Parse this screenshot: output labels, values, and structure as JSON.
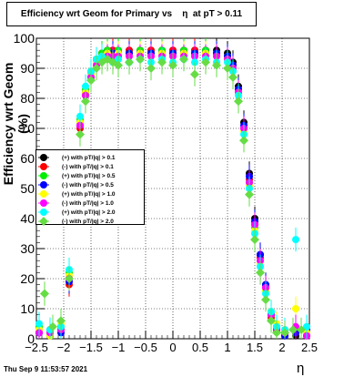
{
  "chart_data": {
    "type": "scatter",
    "title": "Efficiency wrt Geom for Primary vs    η  at pT > 0.11",
    "xlabel": "η",
    "ylabel": "Efficiency wrt Geom (%)",
    "xlim": [
      -2.5,
      2.5
    ],
    "ylim": [
      0,
      100
    ],
    "x_ticks": [
      "−2.5",
      "−2",
      "−1.5",
      "−1",
      "−0.5",
      "0",
      "0.5",
      "1",
      "1.5",
      "2",
      "2.5"
    ],
    "y_ticks": [
      "0",
      "10",
      "20",
      "30",
      "40",
      "50",
      "60",
      "70",
      "80",
      "90",
      "100"
    ],
    "grid": true,
    "legend_position": "middle-left",
    "series": [
      {
        "name": "(+) with pT/|q| > 0.1",
        "color": "#000000",
        "marker": "circle",
        "x": [
          -2.45,
          -2.25,
          -2.05,
          -1.9,
          -1.8,
          -1.7,
          -1.6,
          -1.5,
          -1.4,
          -1.3,
          -1.2,
          -1.1,
          -1.0,
          -0.8,
          -0.6,
          -0.4,
          -0.2,
          0,
          0.2,
          0.4,
          0.6,
          0.8,
          1.0,
          1.1,
          1.2,
          1.3,
          1.4,
          1.5,
          1.6,
          1.7,
          1.8,
          1.9,
          2.05,
          2.25,
          2.45
        ],
        "y": [
          2,
          1,
          3,
          20,
          50,
          72,
          82,
          88,
          93,
          95,
          96,
          96,
          96,
          96,
          96,
          96,
          96,
          96,
          96,
          96,
          96,
          96,
          95,
          92,
          84,
          72,
          55,
          40,
          28,
          18,
          8,
          3,
          1,
          1,
          2
        ]
      },
      {
        "name": "(-) with pT/|q| > 0.1",
        "color": "#ff0000",
        "marker": "circle",
        "x": [
          -2.45,
          -2.25,
          -2.05,
          -1.9,
          -1.8,
          -1.7,
          -1.6,
          -1.5,
          -1.4,
          -1.3,
          -1.2,
          -1.1,
          -1.0,
          -0.8,
          -0.6,
          -0.4,
          -0.2,
          0,
          0.2,
          0.4,
          0.6,
          0.8,
          1.0,
          1.1,
          1.2,
          1.3,
          1.4,
          1.5,
          1.6,
          1.7,
          1.8,
          1.9,
          2.05,
          2.25,
          2.45
        ],
        "y": [
          3,
          2,
          4,
          18,
          48,
          70,
          81,
          87,
          92,
          94,
          95,
          96,
          95,
          96,
          95,
          96,
          95,
          96,
          95,
          96,
          95,
          95,
          94,
          91,
          83,
          70,
          53,
          38,
          27,
          17,
          7,
          3,
          2,
          2,
          1
        ]
      },
      {
        "name": "(+) with pT/|q| > 0.5",
        "color": "#00ee00",
        "marker": "circle",
        "x": [
          -2.45,
          -2.25,
          -2.05,
          -1.9,
          -1.8,
          -1.7,
          -1.6,
          -1.5,
          -1.4,
          -1.3,
          -1.2,
          -1.1,
          -1.0,
          -0.8,
          -0.6,
          -0.4,
          -0.2,
          0,
          0.2,
          0.4,
          0.6,
          0.8,
          1.0,
          1.1,
          1.2,
          1.3,
          1.4,
          1.5,
          1.6,
          1.7,
          1.8,
          1.9,
          2.05,
          2.25,
          2.45
        ],
        "y": [
          4,
          2,
          3,
          22,
          52,
          73,
          83,
          89,
          93,
          95,
          96,
          95,
          96,
          95,
          96,
          95,
          96,
          95,
          96,
          95,
          96,
          95,
          94,
          90,
          82,
          70,
          52,
          37,
          26,
          16,
          9,
          4,
          2,
          3,
          2
        ]
      },
      {
        "name": "(-) with pT/|q| > 0.5",
        "color": "#0000ff",
        "marker": "circle",
        "x": [
          -2.45,
          -2.25,
          -2.05,
          -1.9,
          -1.8,
          -1.7,
          -1.6,
          -1.5,
          -1.4,
          -1.3,
          -1.2,
          -1.1,
          -1.0,
          -0.8,
          -0.6,
          -0.4,
          -0.2,
          0,
          0.2,
          0.4,
          0.6,
          0.8,
          1.0,
          1.1,
          1.2,
          1.3,
          1.4,
          1.5,
          1.6,
          1.7,
          1.8,
          1.9,
          2.05,
          2.25,
          2.45
        ],
        "y": [
          2,
          3,
          2,
          19,
          49,
          71,
          82,
          88,
          92,
          94,
          95,
          95,
          95,
          95,
          95,
          95,
          95,
          95,
          95,
          95,
          95,
          95,
          94,
          91,
          83,
          71,
          54,
          39,
          28,
          18,
          8,
          3,
          1,
          2,
          3
        ]
      },
      {
        "name": "(+) with pT/|q| > 1.0",
        "color": "#ffff00",
        "marker": "circle",
        "x": [
          -2.45,
          -2.25,
          -2.05,
          -1.9,
          -1.8,
          -1.7,
          -1.6,
          -1.5,
          -1.4,
          -1.3,
          -1.2,
          -1.1,
          -1.0,
          -0.8,
          -0.6,
          -0.4,
          -0.2,
          0,
          0.2,
          0.4,
          0.6,
          0.8,
          1.0,
          1.1,
          1.2,
          1.3,
          1.4,
          1.5,
          1.6,
          1.7,
          1.8,
          1.9,
          2.05,
          2.25,
          2.45
        ],
        "y": [
          3,
          1,
          5,
          21,
          51,
          72,
          82,
          88,
          92,
          94,
          95,
          94,
          95,
          94,
          95,
          94,
          95,
          94,
          95,
          94,
          95,
          94,
          93,
          90,
          82,
          69,
          51,
          36,
          25,
          16,
          9,
          5,
          3,
          10,
          2
        ]
      },
      {
        "name": "(-) with pT/|q| > 1.0",
        "color": "#ff00ff",
        "marker": "circle",
        "x": [
          -2.45,
          -2.25,
          -2.05,
          -1.9,
          -1.8,
          -1.7,
          -1.6,
          -1.5,
          -1.4,
          -1.3,
          -1.2,
          -1.1,
          -1.0,
          -0.8,
          -0.6,
          -0.4,
          -0.2,
          0,
          0.2,
          0.4,
          0.6,
          0.8,
          1.0,
          1.1,
          1.2,
          1.3,
          1.4,
          1.5,
          1.6,
          1.7,
          1.8,
          1.9,
          2.05,
          2.25,
          2.45
        ],
        "y": [
          2,
          2,
          3,
          20,
          50,
          71,
          81,
          87,
          91,
          93,
          94,
          94,
          94,
          94,
          94,
          94,
          94,
          94,
          94,
          94,
          94,
          94,
          93,
          90,
          82,
          70,
          52,
          38,
          26,
          17,
          8,
          3,
          2,
          4,
          1
        ]
      },
      {
        "name": "(+) with pT/|q| > 2.0",
        "color": "#00ffff",
        "marker": "circle",
        "x": [
          -2.45,
          -2.25,
          -2.05,
          -1.9,
          -1.8,
          -1.7,
          -1.6,
          -1.5,
          -1.4,
          -1.3,
          -1.2,
          -1.1,
          -1.0,
          -0.8,
          -0.6,
          -0.4,
          -0.2,
          0,
          0.2,
          0.4,
          0.6,
          0.8,
          1.0,
          1.1,
          1.2,
          1.3,
          1.4,
          1.5,
          1.6,
          1.7,
          1.8,
          1.9,
          2.05,
          2.25,
          2.45
        ],
        "y": [
          5,
          3,
          4,
          23,
          53,
          74,
          84,
          89,
          93,
          94,
          93,
          92,
          93,
          92,
          93,
          92,
          93,
          92,
          93,
          92,
          93,
          92,
          92,
          89,
          81,
          68,
          50,
          35,
          24,
          15,
          9,
          4,
          3,
          33,
          4
        ]
      },
      {
        "name": "(-) with pT/|q| > 2.0",
        "color": "#66dd44",
        "marker": "diamond",
        "x": [
          -2.35,
          -2.2,
          -2.05,
          -1.9,
          -1.8,
          -1.7,
          -1.6,
          -1.5,
          -1.4,
          -1.3,
          -1.2,
          -1.1,
          -1.0,
          -0.8,
          -0.6,
          -0.4,
          -0.2,
          0,
          0.2,
          0.4,
          0.6,
          0.8,
          1.0,
          1.1,
          1.2,
          1.3,
          1.4,
          1.5,
          1.6,
          1.7,
          1.8,
          1.9,
          2.05,
          2.2,
          2.35
        ],
        "y": [
          15,
          4,
          6,
          20,
          48,
          68,
          79,
          86,
          90,
          92,
          93,
          92,
          91,
          92,
          93,
          90,
          92,
          91,
          93,
          88,
          92,
          91,
          90,
          87,
          79,
          66,
          48,
          33,
          22,
          13,
          6,
          2,
          2,
          3,
          3
        ]
      }
    ]
  },
  "timestamp": "Thu Sep  9 11:53:57 2021"
}
